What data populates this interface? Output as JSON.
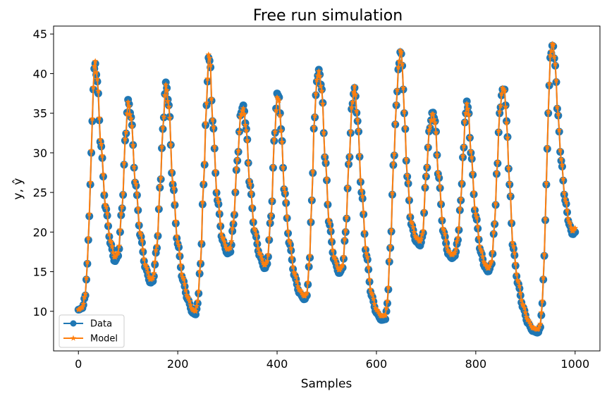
{
  "chart_data": {
    "type": "line",
    "title": "Free run simulation",
    "xlabel": "Samples",
    "ylabel": "y, ŷ",
    "xlim": [
      -50,
      1050
    ],
    "ylim": [
      5.0,
      46.0
    ],
    "x_ticks": [
      0,
      200,
      400,
      600,
      800,
      1000
    ],
    "y_ticks": [
      10,
      15,
      20,
      25,
      30,
      35,
      40,
      45
    ],
    "grid": false,
    "legend_position": "lower-left",
    "series": [
      {
        "name": "Data",
        "color": "#1f77b4",
        "marker": "circle",
        "x": [
          0,
          8,
          14,
          18,
          22,
          26,
          30,
          33,
          38,
          45,
          55,
          65,
          73,
          80,
          88,
          95,
          100,
          106,
          115,
          125,
          135,
          145,
          150,
          158,
          165,
          170,
          176,
          182,
          190,
          200,
          210,
          220,
          230,
          236,
          240,
          246,
          252,
          258,
          262,
          265,
          270,
          280,
          290,
          300,
          306,
          312,
          320,
          327,
          332,
          338,
          345,
          355,
          365,
          375,
          380,
          388,
          395,
          400,
          404,
          408,
          415,
          425,
          435,
          445,
          455,
          460,
          465,
          470,
          475,
          480,
          484,
          490,
          497,
          505,
          515,
          525,
          532,
          538,
          545,
          551,
          556,
          562,
          570,
          580,
          590,
          600,
          610,
          618,
          622,
          628,
          635,
          640,
          645,
          649,
          652,
          656,
          662,
          670,
          680,
          688,
          693,
          700,
          707,
          713,
          718,
          725,
          735,
          745,
          752,
          758,
          764,
          770,
          775,
          779,
          782,
          785,
          790,
          800,
          810,
          818,
          825,
          832,
          838,
          843,
          848,
          854,
          858,
          862,
          868,
          875,
          885,
          895,
          905,
          915,
          925,
          930,
          934,
          938,
          942,
          946,
          950,
          955,
          960,
          965,
          972,
          980,
          988,
          995,
          1000
        ],
        "values": [
          10.2,
          10.4,
          12.0,
          16.0,
          22.0,
          30.0,
          38.0,
          41.5,
          39.0,
          31.0,
          23.0,
          18.5,
          16.3,
          17.0,
          23.0,
          32.0,
          36.7,
          34.5,
          26.0,
          19.5,
          15.5,
          13.6,
          13.8,
          18.0,
          26.0,
          33.0,
          38.9,
          36.0,
          26.0,
          18.5,
          14.0,
          11.5,
          9.8,
          9.6,
          11.0,
          16.0,
          26.0,
          36.0,
          42.0,
          41.5,
          34.0,
          24.0,
          19.0,
          17.3,
          17.5,
          21.0,
          29.0,
          35.0,
          36.0,
          33.0,
          26.0,
          20.0,
          17.0,
          15.4,
          16.0,
          22.0,
          32.0,
          37.5,
          37.0,
          33.0,
          25.0,
          18.5,
          14.5,
          12.3,
          11.5,
          12.0,
          16.0,
          24.0,
          34.0,
          39.0,
          40.5,
          38.0,
          29.0,
          21.0,
          16.5,
          14.8,
          15.5,
          20.0,
          29.0,
          36.0,
          38.2,
          34.0,
          25.0,
          17.0,
          12.0,
          9.8,
          8.9,
          9.0,
          11.0,
          18.0,
          29.0,
          36.0,
          41.0,
          43.0,
          41.0,
          35.0,
          27.0,
          21.0,
          18.8,
          18.3,
          19.5,
          27.0,
          33.0,
          35.2,
          34.0,
          27.0,
          20.0,
          17.2,
          16.7,
          17.0,
          19.0,
          24.0,
          30.0,
          34.5,
          36.5,
          35.5,
          30.0,
          22.0,
          17.5,
          15.6,
          15.0,
          16.0,
          21.0,
          28.0,
          35.0,
          38.0,
          38.0,
          34.0,
          26.0,
          18.0,
          13.5,
          10.5,
          8.5,
          7.5,
          7.3,
          8.0,
          11.0,
          17.0,
          26.0,
          35.0,
          42.0,
          43.7,
          41.0,
          35.0,
          29.0,
          24.0,
          21.0,
          19.7,
          20.0
        ]
      },
      {
        "name": "Model",
        "color": "#ff7f0e",
        "marker": "star",
        "x": [
          0,
          8,
          14,
          18,
          22,
          26,
          30,
          33,
          38,
          45,
          55,
          65,
          73,
          80,
          88,
          95,
          100,
          106,
          115,
          125,
          135,
          145,
          150,
          158,
          165,
          170,
          176,
          182,
          190,
          200,
          210,
          220,
          230,
          236,
          240,
          246,
          252,
          258,
          262,
          265,
          270,
          280,
          290,
          300,
          306,
          312,
          320,
          327,
          332,
          338,
          345,
          355,
          365,
          375,
          380,
          388,
          395,
          400,
          404,
          408,
          415,
          425,
          435,
          445,
          455,
          460,
          465,
          470,
          475,
          480,
          484,
          490,
          497,
          505,
          515,
          525,
          532,
          538,
          545,
          551,
          556,
          562,
          570,
          580,
          590,
          600,
          610,
          618,
          622,
          628,
          635,
          640,
          645,
          649,
          652,
          656,
          662,
          670,
          680,
          688,
          693,
          700,
          707,
          713,
          718,
          725,
          735,
          745,
          752,
          758,
          764,
          770,
          775,
          779,
          782,
          785,
          790,
          800,
          810,
          818,
          825,
          832,
          838,
          843,
          848,
          854,
          858,
          862,
          868,
          875,
          885,
          895,
          905,
          915,
          925,
          930,
          934,
          938,
          942,
          946,
          950,
          955,
          960,
          965,
          972,
          980,
          988,
          995,
          1000
        ],
        "values": [
          10.2,
          10.5,
          12.2,
          16.2,
          22.3,
          30.3,
          38.3,
          41.8,
          39.3,
          31.3,
          23.3,
          18.8,
          16.8,
          17.4,
          23.2,
          32.2,
          36.4,
          34.3,
          26.2,
          19.8,
          15.8,
          14.0,
          14.2,
          18.3,
          26.2,
          33.2,
          38.6,
          35.8,
          26.3,
          18.8,
          14.3,
          11.8,
          10.2,
          10.0,
          11.3,
          16.3,
          26.3,
          36.3,
          42.4,
          41.8,
          34.2,
          24.3,
          19.3,
          17.8,
          18.0,
          21.3,
          29.2,
          34.8,
          35.6,
          32.8,
          26.2,
          20.3,
          17.3,
          15.8,
          16.3,
          22.2,
          32.2,
          37.0,
          36.6,
          32.8,
          25.2,
          18.8,
          14.8,
          12.7,
          11.9,
          12.3,
          16.3,
          24.2,
          34.2,
          39.2,
          40.3,
          37.8,
          29.2,
          21.3,
          16.8,
          15.2,
          15.8,
          20.2,
          29.2,
          36.2,
          38.4,
          34.2,
          25.3,
          17.3,
          12.3,
          10.2,
          9.4,
          9.5,
          11.3,
          18.2,
          29.2,
          36.2,
          41.3,
          43.2,
          41.2,
          35.2,
          27.2,
          21.3,
          19.3,
          18.8,
          19.8,
          27.2,
          33.2,
          35.0,
          33.8,
          27.2,
          20.3,
          17.6,
          17.1,
          17.4,
          19.3,
          24.2,
          30.2,
          34.6,
          36.2,
          35.3,
          30.2,
          22.3,
          17.8,
          16.0,
          15.4,
          16.3,
          21.2,
          28.2,
          35.2,
          38.2,
          37.8,
          33.8,
          26.2,
          18.3,
          13.8,
          10.8,
          8.9,
          7.9,
          7.7,
          8.4,
          11.3,
          17.2,
          26.2,
          35.2,
          42.3,
          43.9,
          41.2,
          35.2,
          29.2,
          24.2,
          21.3,
          20.1,
          20.5
        ]
      }
    ]
  }
}
